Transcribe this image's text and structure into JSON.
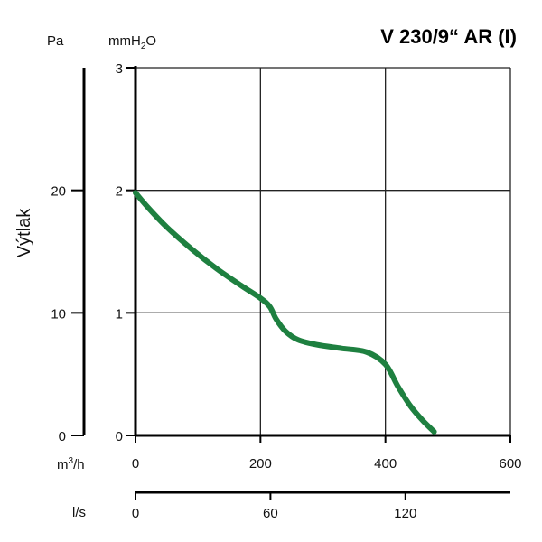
{
  "chart_data": {
    "type": "line",
    "title": "V 230/9“ AR (I)",
    "ylabel": "Výtlak",
    "y_units_primary": "Pa",
    "y_units_secondary_base": "mmH",
    "y_units_secondary_sub": "2",
    "y_units_secondary_tail": "O",
    "x_units_primary_base": "m",
    "x_units_primary_sup": "3",
    "x_units_primary_tail": "/h",
    "x_units_secondary": "l/s",
    "xlim": [
      0,
      600
    ],
    "ylim_mmH2O": [
      0,
      3
    ],
    "ylim_Pa": [
      0,
      30
    ],
    "grid": true,
    "x_ticks": [
      "0",
      "200",
      "400",
      "600"
    ],
    "x_tick_values": [
      0,
      200,
      400,
      600
    ],
    "y_ticks_mmH2O": [
      "0",
      "1",
      "2",
      "3"
    ],
    "y_tick_values_mmH2O": [
      0,
      1,
      2,
      3
    ],
    "y_ticks_Pa": [
      "0",
      "10",
      "20"
    ],
    "y_tick_values_Pa": [
      0,
      10,
      20
    ],
    "ls_ticks": [
      "0",
      "60",
      "120"
    ],
    "ls_tick_values": [
      0,
      60,
      120
    ],
    "ls_axis_max": 166.67,
    "series": [
      {
        "color": "#1e8040",
        "x": [
          0,
          20,
          50,
          90,
          130,
          170,
          200,
          215,
          225,
          240,
          260,
          290,
          330,
          370,
          400,
          420,
          440,
          460,
          478
        ],
        "y": [
          1.98,
          1.86,
          1.7,
          1.52,
          1.36,
          1.22,
          1.12,
          1.05,
          0.95,
          0.85,
          0.78,
          0.74,
          0.71,
          0.68,
          0.58,
          0.4,
          0.24,
          0.12,
          0.03
        ]
      }
    ]
  }
}
